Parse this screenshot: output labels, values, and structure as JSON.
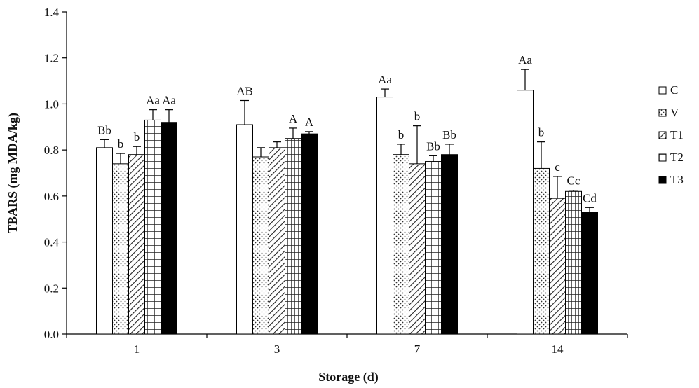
{
  "chart_data": {
    "type": "bar",
    "xlabel": "Storage (d)",
    "ylabel": "TBARS (mg MDA/kg)",
    "ylim": [
      0,
      1.4
    ],
    "yticks": [
      "0.0",
      "0.2",
      "0.4",
      "0.6",
      "0.8",
      "1.0",
      "1.2",
      "1.4"
    ],
    "categories": [
      "1",
      "3",
      "7",
      "14"
    ],
    "grid": false,
    "legend_position": "right",
    "series": [
      {
        "name": "C",
        "pattern": "open",
        "values": [
          0.81,
          0.91,
          1.03,
          1.06
        ],
        "errors": [
          0.035,
          0.105,
          0.035,
          0.09
        ],
        "labels": [
          "Bb",
          "AB",
          "Aa",
          "Aa"
        ]
      },
      {
        "name": "V",
        "pattern": "dots",
        "values": [
          0.74,
          0.77,
          0.78,
          0.72
        ],
        "errors": [
          0.045,
          0.04,
          0.045,
          0.115
        ],
        "labels": [
          "b",
          "",
          "b",
          "b"
        ]
      },
      {
        "name": "T1",
        "pattern": "diagonal",
        "values": [
          0.78,
          0.81,
          0.74,
          0.59
        ],
        "errors": [
          0.035,
          0.025,
          0.165,
          0.095
        ],
        "labels": [
          "b",
          "",
          "b",
          "c"
        ]
      },
      {
        "name": "T2",
        "pattern": "grid",
        "values": [
          0.93,
          0.85,
          0.75,
          0.62
        ],
        "errors": [
          0.045,
          0.045,
          0.025,
          0.005
        ],
        "labels": [
          "Aa",
          "A",
          "Bb",
          "Cc"
        ]
      },
      {
        "name": "T3",
        "pattern": "solid",
        "values": [
          0.92,
          0.87,
          0.78,
          0.53
        ],
        "errors": [
          0.055,
          0.01,
          0.045,
          0.02
        ],
        "labels": [
          "Aa",
          "A",
          "Bb",
          "Cd"
        ]
      }
    ]
  }
}
